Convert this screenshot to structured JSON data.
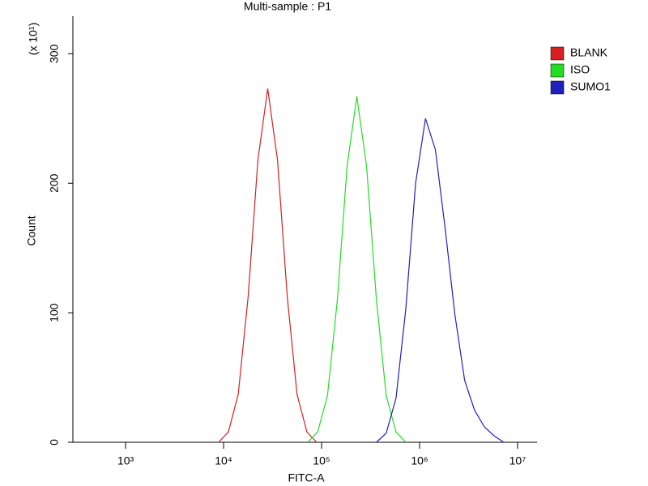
{
  "chart_data": {
    "type": "line",
    "title": "Multi-sample : P1",
    "xlabel": "FITC-A",
    "ylabel": "Count",
    "annotation": "(x 10¹)",
    "xscale": "log",
    "legend": "upper right outside",
    "xlim": [
      290,
      15800000
    ],
    "ylim": [
      0,
      329
    ],
    "xticks": [
      {
        "value": 1000,
        "label": "10³"
      },
      {
        "value": 10000,
        "label": "10⁴"
      },
      {
        "value": 100000,
        "label": "10⁵"
      },
      {
        "value": 1000000,
        "label": "10⁶"
      },
      {
        "value": 10000000,
        "label": "10⁷"
      }
    ],
    "yticks": [
      0,
      100,
      200,
      300
    ],
    "series": [
      {
        "name": "BLANK",
        "color": "#d42020",
        "x": [
          8900,
          11200,
          14100,
          17800,
          22400,
          28200,
          35500,
          44700,
          56200,
          70800,
          89100
        ],
        "values": [
          0,
          8,
          37,
          112,
          218,
          273,
          218,
          112,
          37,
          8,
          0
        ]
      },
      {
        "name": "ISO",
        "color": "#22dd22",
        "x": [
          72400,
          91200,
          115000,
          145000,
          182000,
          229000,
          288000,
          363000,
          457000,
          575000,
          724000
        ],
        "values": [
          0,
          8,
          36,
          110,
          213,
          267,
          213,
          110,
          36,
          8,
          0
        ]
      },
      {
        "name": "SUMO1",
        "color": "#2020c0",
        "x": [
          363000,
          457000,
          575000,
          724000,
          912000,
          1150000,
          1450000,
          1820000,
          2290000,
          2880000,
          3630000,
          4570000,
          5750000,
          7240000
        ],
        "values": [
          0,
          7,
          34,
          103,
          200,
          250,
          226,
          166,
          99,
          48,
          25,
          12,
          5,
          0
        ]
      }
    ]
  }
}
